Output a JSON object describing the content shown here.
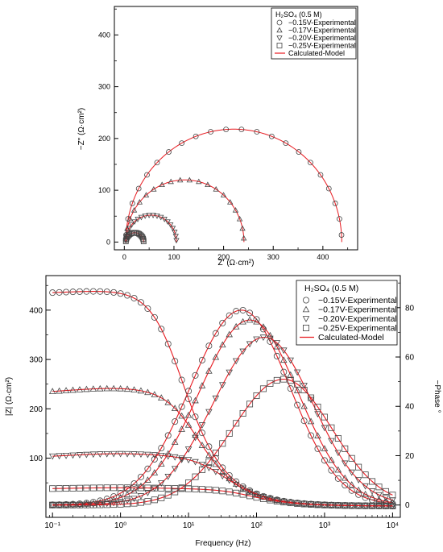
{
  "chart_data": [
    {
      "type": "scatter",
      "plot": "nyquist",
      "xlabel": "Z' (Ω·cm²)",
      "ylabel": "−Z\" (Ω·cm²)",
      "xlim": [
        -20,
        470
      ],
      "ylim": [
        -15,
        455
      ],
      "xticks": [
        "0",
        "100",
        "200",
        "300",
        "400"
      ],
      "yticks": [
        "0",
        "100",
        "200",
        "300",
        "400"
      ],
      "legend": {
        "title": "H₂SO₄ (0.5 M)",
        "placement": "top-right",
        "entries": [
          "−0.15V-Experimental",
          "−0.17V-Experimental",
          "−0.20V-Experimental",
          "−0.25V-Experimental",
          "Calculated-Model"
        ]
      },
      "model_color": "#e8191f",
      "series": [
        {
          "name": "−0.15V-Experimental",
          "marker": "circle",
          "rs": 3,
          "r_arc": 435,
          "peak": 218,
          "points": 22
        },
        {
          "name": "−0.17V-Experimental",
          "marker": "triangle-up",
          "rs": 3,
          "r_arc": 238,
          "peak": 120,
          "points": 20
        },
        {
          "name": "−0.20V-Experimental",
          "marker": "triangle-down",
          "rs": 3,
          "r_arc": 102,
          "peak": 52,
          "points": 20
        },
        {
          "name": "−0.25V-Experimental",
          "marker": "square",
          "rs": 3,
          "r_arc": 36,
          "peak": 18,
          "points": 22
        }
      ]
    },
    {
      "type": "scatter",
      "plot": "bode",
      "xlabel": "Frequency (Hz)",
      "ylabel_left": "|Z| (Ω·cm²)",
      "ylabel_right": "−Phase °",
      "xlim": [
        0.08,
        13000
      ],
      "ylim_left": [
        -20,
        470
      ],
      "ylim_right": [
        -5,
        93
      ],
      "xticks": [
        "10⁻¹",
        "10⁰",
        "10¹",
        "10²",
        "10³",
        "10⁴"
      ],
      "yticks_left": [
        "100",
        "200",
        "300",
        "400"
      ],
      "yticks_right": [
        "0",
        "20",
        "40",
        "60",
        "80"
      ],
      "legend": {
        "title": "H₂SO₄ (0.5 M)",
        "placement": "top-right",
        "entries": [
          "−0.15V-Experimental",
          "−0.17V-Experimental",
          "−0.20V-Experimental",
          "−0.25V-Experimental",
          "Calculated-Model"
        ]
      },
      "model_color": "#e8191f",
      "series": [
        {
          "name": "−0.15V-Experimental",
          "marker": "circle",
          "z_low": 432,
          "z_max": 440,
          "z_drop_freq": 5.8,
          "phase_peak": 79,
          "peak_freq": 60
        },
        {
          "name": "−0.17V-Experimental",
          "marker": "triangle-up",
          "z_low": 230,
          "z_max": 242,
          "z_drop_freq": 10,
          "phase_peak": 75,
          "peak_freq": 80
        },
        {
          "name": "−0.20V-Experimental",
          "marker": "triangle-down",
          "z_low": 100,
          "z_max": 109,
          "z_drop_freq": 25,
          "phase_peak": 68,
          "peak_freq": 130
        },
        {
          "name": "−0.25V-Experimental",
          "marker": "square",
          "z_low": 37,
          "z_max": 40,
          "z_drop_freq": 60,
          "phase_peak": 51,
          "peak_freq": 250
        }
      ]
    }
  ]
}
